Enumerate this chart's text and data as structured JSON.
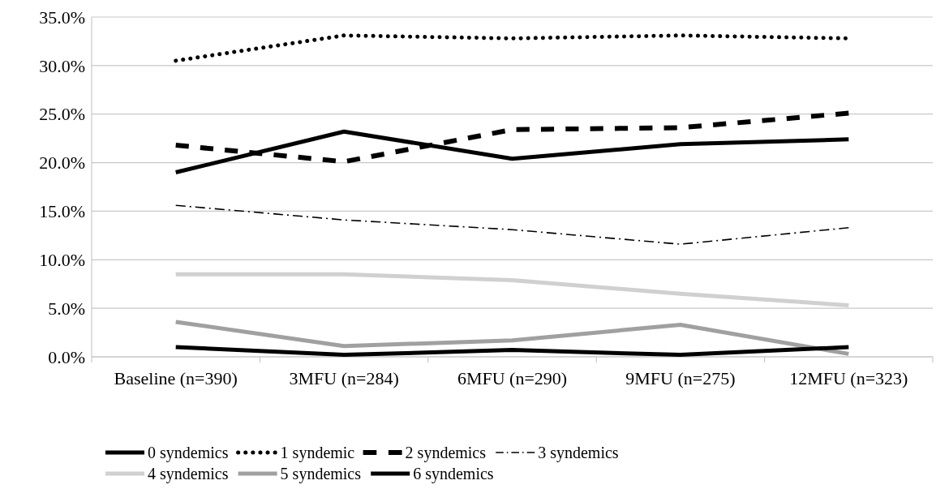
{
  "chart_data": {
    "type": "line",
    "categories": [
      "Baseline (n=390)",
      "3MFU (n=284)",
      "6MFU (n=290)",
      "9MFU (n=275)",
      "12MFU (n=323)"
    ],
    "series": [
      {
        "name": "0 syndemics",
        "color": "#000000",
        "line_style": "solid",
        "values": [
          19.0,
          23.2,
          20.4,
          21.9,
          22.4
        ]
      },
      {
        "name": "1 syndemic",
        "color": "#000000",
        "line_style": "dotted",
        "values": [
          30.5,
          33.1,
          32.8,
          33.1,
          32.8
        ]
      },
      {
        "name": "2 syndemics",
        "color": "#000000",
        "line_style": "dashed",
        "values": [
          21.8,
          20.1,
          23.4,
          23.6,
          25.1
        ]
      },
      {
        "name": "3 syndemics",
        "color": "#000000",
        "line_style": "dashdot",
        "values": [
          15.6,
          14.1,
          13.1,
          11.6,
          13.3
        ]
      },
      {
        "name": "4 syndemics",
        "color": "#d0d0d0",
        "line_style": "solid",
        "values": [
          8.5,
          8.5,
          7.9,
          6.5,
          5.3
        ]
      },
      {
        "name": "5 syndemics",
        "color": "#a0a0a0",
        "line_style": "solid",
        "values": [
          3.6,
          1.1,
          1.7,
          3.3,
          0.3
        ]
      },
      {
        "name": "6 syndemics",
        "color": "#000000",
        "line_style": "solid",
        "values": [
          1.0,
          0.2,
          0.7,
          0.2,
          1.0
        ]
      }
    ],
    "ylim": [
      0,
      35
    ],
    "yticks": [
      {
        "value": 0,
        "label": "0.0%"
      },
      {
        "value": 5,
        "label": "5.0%"
      },
      {
        "value": 10,
        "label": "10.0%"
      },
      {
        "value": 15,
        "label": "15.0%"
      },
      {
        "value": 20,
        "label": "20.0%"
      },
      {
        "value": 25,
        "label": "25.0%"
      },
      {
        "value": 30,
        "label": "30.0%"
      },
      {
        "value": 35,
        "label": "35.0%"
      }
    ],
    "grid": "y",
    "legend": "bottom",
    "marker": "none"
  }
}
